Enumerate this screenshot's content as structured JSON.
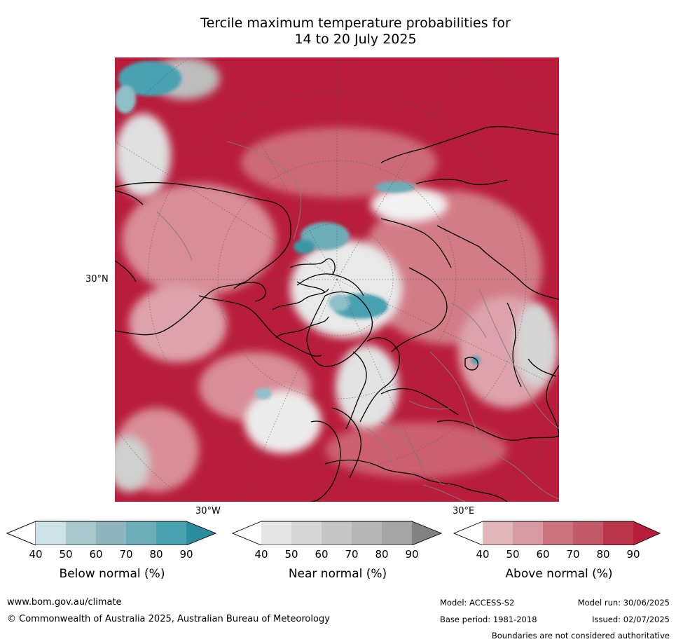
{
  "title_line1": "Tercile maximum temperature probabilities for",
  "title_line2": "14 to 20 July 2025",
  "map": {
    "lat_label": "30°N",
    "lon_label_west": "30°W",
    "lon_label_east": "30°E",
    "colors": {
      "above_strong": "#b81d3b",
      "above_mid": "#c85a6c",
      "above_light": "#dda2ab",
      "near_light": "#e6e6e6",
      "near_mid": "#c4c4c4",
      "below_light": "#9fc4cc",
      "below_strong": "#3a97a8"
    }
  },
  "colorbars": [
    {
      "label": "Below normal (%)",
      "ticks": [
        "40",
        "50",
        "60",
        "70",
        "80",
        "90"
      ],
      "colors": [
        "#ffffff",
        "#cce2e7",
        "#a9c8ce",
        "#8fb5bf",
        "#6cadb8",
        "#4aa2b1",
        "#2c8da1"
      ]
    },
    {
      "label": "Near normal (%)",
      "ticks": [
        "40",
        "50",
        "60",
        "70",
        "80",
        "90"
      ],
      "colors": [
        "#ffffff",
        "#e6e6e6",
        "#d6d6d6",
        "#c6c6c6",
        "#b5b5b5",
        "#a5a5a5",
        "#828282"
      ]
    },
    {
      "label": "Above normal (%)",
      "ticks": [
        "40",
        "50",
        "60",
        "70",
        "80",
        "90"
      ],
      "colors": [
        "#ffffff",
        "#e1b7bc",
        "#d59aa2",
        "#cb737e",
        "#c35a68",
        "#bb3548",
        "#b81d3b"
      ]
    }
  ],
  "footer": {
    "website": "www.bom.gov.au/climate",
    "copyright": "© Commonwealth of Australia 2025, Australian Bureau of Meteorology",
    "model": "Model: ACCESS-S2",
    "base_period": "Base period: 1981-2018",
    "model_run": "Model run: 30/06/2025",
    "issued": "Issued: 02/07/2025",
    "disclaimer": "Boundaries are not considered authoritative"
  }
}
